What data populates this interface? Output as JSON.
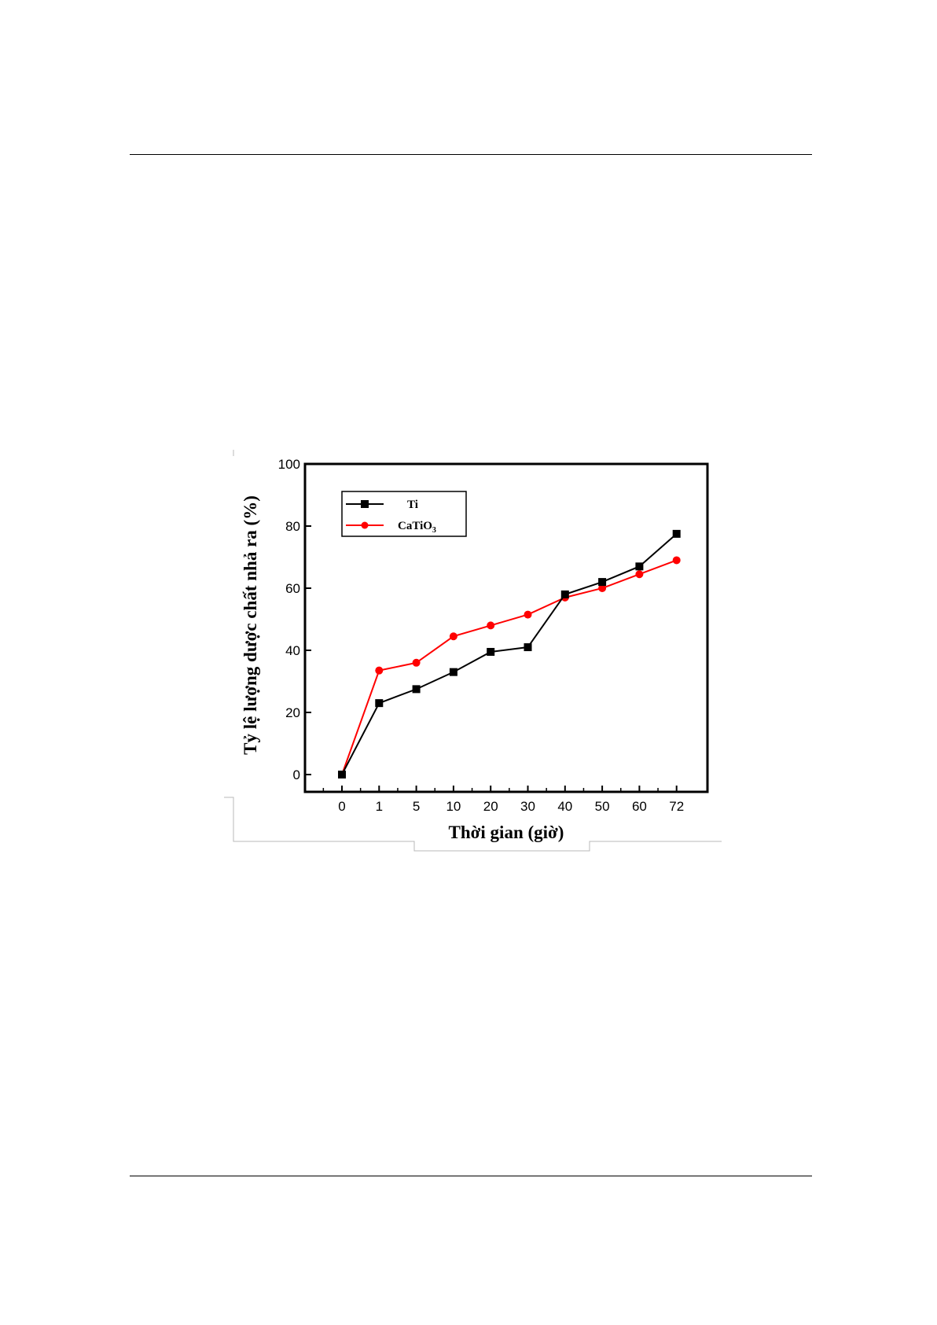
{
  "chart_data": {
    "type": "line",
    "xlabel": "Thời gian (giờ)",
    "ylabel": "Tỷ lệ lượng dược chất nhả ra (%)",
    "categories": [
      "0",
      "1",
      "5",
      "10",
      "20",
      "30",
      "40",
      "50",
      "60",
      "72"
    ],
    "ylim": [
      0,
      100
    ],
    "yticks": [
      "0",
      "20",
      "40",
      "60",
      "80",
      "100"
    ],
    "legend_position": "top-left",
    "grid": false,
    "series": [
      {
        "name": "Ti",
        "color": "#000000",
        "marker": "square",
        "values": [
          0,
          23,
          27.5,
          33,
          39.5,
          41,
          58,
          62,
          67,
          77.5
        ]
      },
      {
        "name": "CaTiO",
        "name_subscript": "3",
        "color": "#ff0000",
        "marker": "circle",
        "values": [
          0,
          33.5,
          36,
          44.5,
          48,
          51.5,
          57,
          60,
          64.5,
          69
        ]
      }
    ]
  }
}
